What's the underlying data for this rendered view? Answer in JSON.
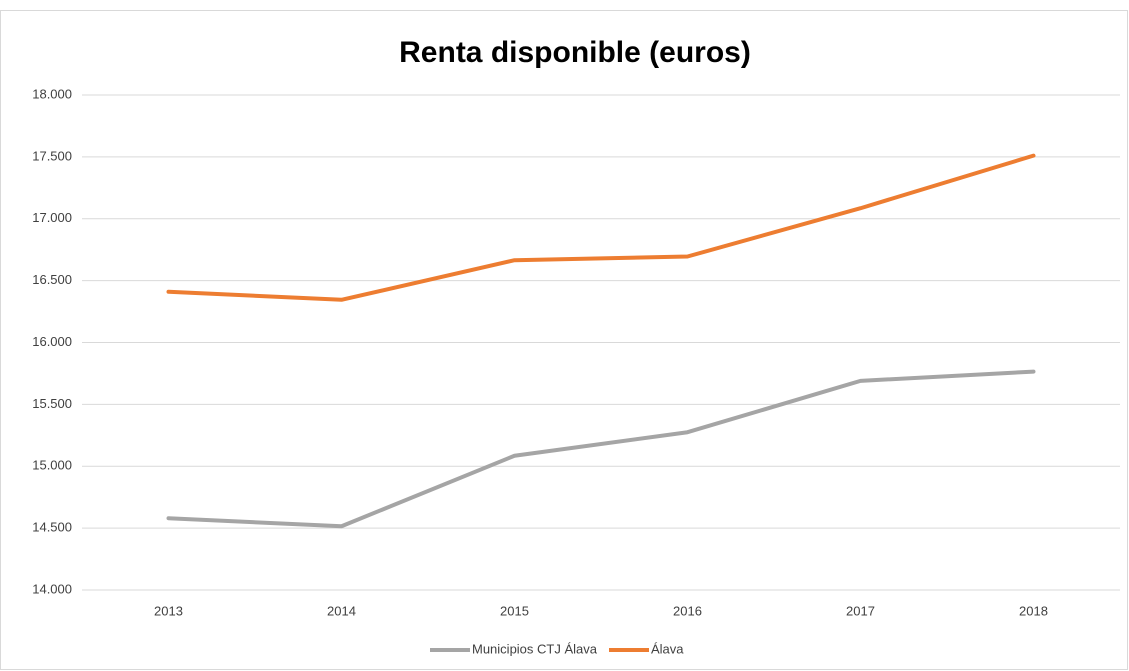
{
  "chart_data": {
    "type": "line",
    "title": "Renta disponible (euros)",
    "categories": [
      "2013",
      "2014",
      "2015",
      "2016",
      "2017",
      "2018"
    ],
    "series": [
      {
        "name": "Municipios CTJ Álava",
        "color": "#a5a5a5",
        "values": [
          14580,
          14515,
          15085,
          15275,
          15690,
          15765
        ]
      },
      {
        "name": "Álava",
        "color": "#ed7d31",
        "values": [
          16410,
          16345,
          16665,
          16695,
          17085,
          17510
        ]
      }
    ],
    "ylim": [
      14000,
      18000
    ],
    "yticks": [
      {
        "value": 14000,
        "label": "14.000"
      },
      {
        "value": 14500,
        "label": "14.500"
      },
      {
        "value": 15000,
        "label": "15.000"
      },
      {
        "value": 15500,
        "label": "15.500"
      },
      {
        "value": 16000,
        "label": "16.000"
      },
      {
        "value": 16500,
        "label": "16.500"
      },
      {
        "value": 17000,
        "label": "17.000"
      },
      {
        "value": 17500,
        "label": "17.500"
      },
      {
        "value": 18000,
        "label": "18.000"
      }
    ],
    "grid": true,
    "legend": "bottom"
  }
}
